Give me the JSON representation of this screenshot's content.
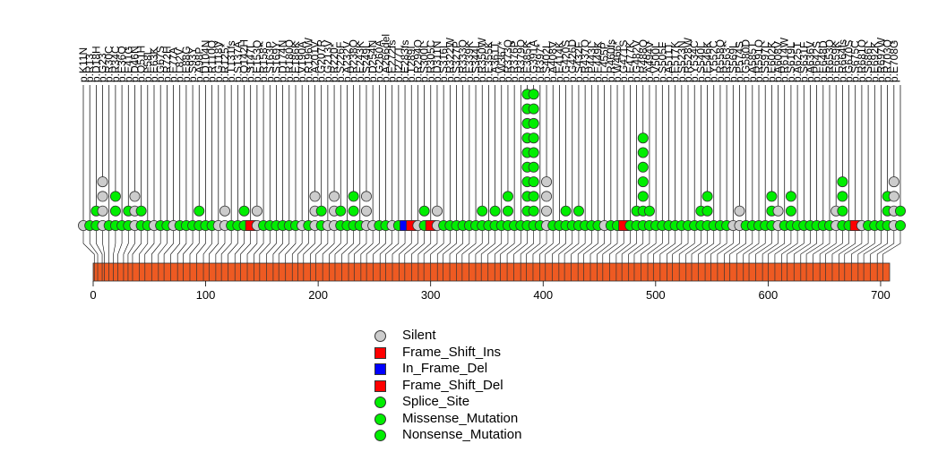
{
  "chart_data": {
    "type": "lollipop",
    "title": "",
    "protein_length": 708,
    "x_axis": {
      "range": [
        0,
        708
      ],
      "ticks": [
        0,
        100,
        200,
        300,
        400,
        500,
        600,
        700
      ]
    },
    "domain_color": "#ee5a22",
    "mutation_labels": [
      "p.K11N",
      "p.R13",
      "p.D18H",
      "p.G23",
      "p.R30C",
      "p.R34C",
      "p.E36Q",
      "p.E41G",
      "p.D46N",
      "p.Q51H",
      "p.F58L",
      "p.E63K",
      "p.G67S",
      "p.R72H",
      "p.E77A",
      "p.L82V",
      "p.E88G",
      "p.S93Y",
      "p.A98P",
      "p.D104N",
      "p.R110Q",
      "p.G118V",
      "p.R125*",
      "p.T131fs",
      "p.S137A",
      "p.Q142H",
      "p.S147L",
      "p.E153Q",
      "p.R158*",
      "p.S163P",
      "p.S169Y",
      "p.D174N",
      "p.R180Q",
      "p.E186K",
      "p.V190A",
      "p.R196W",
      "p.A201V",
      "p.G207R",
      "p.G213V",
      "p.R220*",
      "p.S226F",
      "p.A232V",
      "p.R238Q",
      "p.E243K",
      "p.S249L",
      "p.D254N",
      "p.G260A",
      "p.A266del",
      "p.E272fs",
      "p.I277T",
      "p.E283fs",
      "p.T289I",
      "p.R294Q",
      "p.S300L",
      "p.R305C",
      "p.D311N",
      "p.S316L",
      "p.R322W",
      "p.S327P",
      "p.R333Q",
      "p.E339K",
      "p.S344L",
      "p.R350W",
      "p.E355K",
      "p.A361T",
      "p.W367*",
      "p.R373Q",
      "p.R376P",
      "p.R379Q",
      "p.E385K",
      "p.G391A",
      "p.R397*",
      "p.S402L",
      "p.A408V",
      "p.E414K",
      "p.G420S",
      "p.G426D",
      "p.S432F",
      "p.R437Q",
      "p.P443L",
      "p.E449K",
      "p.L455P",
      "p.R460fs",
      "p.W466*",
      "p.G471S",
      "p.E477K",
      "p.G482V",
      "p.R488Q",
      "p.A494V",
      "p.V500L",
      "p.S505F",
      "p.A511T",
      "p.E517K",
      "p.S523N",
      "p.R528W",
      "p.Y534C",
      "p.S540L",
      "p.E546K",
      "p.Y552C",
      "p.R558Q",
      "p.R563*",
      "p.S569L",
      "p.P574S",
      "p.G580D",
      "p.A585T",
      "p.R591Q",
      "p.S597L",
      "p.E602K",
      "p.A608V",
      "p.R614W",
      "p.S619L",
      "p.A625T",
      "p.S631F",
      "p.A636V",
      "p.P642S",
      "p.E648D",
      "p.R653Q",
      "p.E659K",
      "p.R664fs",
      "p.G670S",
      "p.S675C",
      "p.R681Q",
      "p.S686L",
      "p.E692K",
      "p.R697W",
      "p.R703Q",
      "p.E708G"
    ],
    "mutations": [
      {
        "pos": 1,
        "type": "Silent",
        "count": 1
      },
      {
        "pos": 4,
        "type": "Missense_Mutation",
        "count": 1
      },
      {
        "pos": 8,
        "type": "Missense_Mutation",
        "count": 2
      },
      {
        "pos": 10,
        "type": "Silent",
        "count": 4
      },
      {
        "pos": 14,
        "type": "Missense_Mutation",
        "count": 1
      },
      {
        "pos": 18,
        "type": "Missense_Mutation",
        "count": 3
      },
      {
        "pos": 22,
        "type": "Missense_Mutation",
        "count": 1
      },
      {
        "pos": 27,
        "type": "Missense_Mutation",
        "count": 2
      },
      {
        "pos": 31,
        "type": "Silent",
        "count": 3
      },
      {
        "pos": 35,
        "type": "Missense_Mutation",
        "count": 2
      },
      {
        "pos": 41,
        "type": "Missense_Mutation",
        "count": 1
      },
      {
        "pos": 46,
        "type": "Silent",
        "count": 1
      },
      {
        "pos": 52,
        "type": "Missense_Mutation",
        "count": 1
      },
      {
        "pos": 58,
        "type": "Missense_Mutation",
        "count": 1
      },
      {
        "pos": 63,
        "type": "Silent",
        "count": 1
      },
      {
        "pos": 69,
        "type": "Missense_Mutation",
        "count": 1
      },
      {
        "pos": 75,
        "type": "Missense_Mutation",
        "count": 1
      },
      {
        "pos": 80,
        "type": "Missense_Mutation",
        "count": 1
      },
      {
        "pos": 86,
        "type": "Missense_Mutation",
        "count": 2
      },
      {
        "pos": 92,
        "type": "Missense_Mutation",
        "count": 1
      },
      {
        "pos": 98,
        "type": "Missense_Mutation",
        "count": 1
      },
      {
        "pos": 103,
        "type": "Silent",
        "count": 1
      },
      {
        "pos": 109,
        "type": "Silent",
        "count": 2
      },
      {
        "pos": 114,
        "type": "Missense_Mutation",
        "count": 1
      },
      {
        "pos": 120,
        "type": "Missense_Mutation",
        "count": 1
      },
      {
        "pos": 126,
        "type": "Missense_Mutation",
        "count": 2
      },
      {
        "pos": 131,
        "type": "Frame_Shift_Ins",
        "count": 1
      },
      {
        "pos": 137,
        "type": "Silent",
        "count": 2
      },
      {
        "pos": 143,
        "type": "Missense_Mutation",
        "count": 1
      },
      {
        "pos": 148,
        "type": "Missense_Mutation",
        "count": 1
      },
      {
        "pos": 154,
        "type": "Missense_Mutation",
        "count": 1
      },
      {
        "pos": 160,
        "type": "Missense_Mutation",
        "count": 1
      },
      {
        "pos": 165,
        "type": "Missense_Mutation",
        "count": 1
      },
      {
        "pos": 171,
        "type": "Missense_Mutation",
        "count": 1
      },
      {
        "pos": 177,
        "type": "Silent",
        "count": 1
      },
      {
        "pos": 182,
        "type": "Missense_Mutation",
        "count": 1
      },
      {
        "pos": 187,
        "type": "Silent",
        "count": 3
      },
      {
        "pos": 193,
        "type": "Missense_Mutation",
        "count": 2
      },
      {
        "pos": 198,
        "type": "Silent",
        "count": 1
      },
      {
        "pos": 204,
        "type": "Silent",
        "count": 3
      },
      {
        "pos": 210,
        "type": "Missense_Mutation",
        "count": 2
      },
      {
        "pos": 215,
        "type": "Missense_Mutation",
        "count": 1
      },
      {
        "pos": 221,
        "type": "Missense_Mutation",
        "count": 3
      },
      {
        "pos": 227,
        "type": "Missense_Mutation",
        "count": 1
      },
      {
        "pos": 232,
        "type": "Silent",
        "count": 3
      },
      {
        "pos": 238,
        "type": "Silent",
        "count": 1
      },
      {
        "pos": 243,
        "type": "Missense_Mutation",
        "count": 1
      },
      {
        "pos": 249,
        "type": "Missense_Mutation",
        "count": 1
      },
      {
        "pos": 255,
        "type": "Silent",
        "count": 1
      },
      {
        "pos": 260,
        "type": "Missense_Mutation",
        "count": 1
      },
      {
        "pos": 266,
        "type": "In_Frame_Del",
        "count": 1
      },
      {
        "pos": 272,
        "type": "Frame_Shift_Del",
        "count": 1
      },
      {
        "pos": 277,
        "type": "Silent",
        "count": 1
      },
      {
        "pos": 283,
        "type": "Missense_Mutation",
        "count": 2
      },
      {
        "pos": 289,
        "type": "Frame_Shift_Del",
        "count": 1
      },
      {
        "pos": 294,
        "type": "Silent",
        "count": 2
      },
      {
        "pos": 300,
        "type": "Missense_Mutation",
        "count": 1
      },
      {
        "pos": 306,
        "type": "Missense_Mutation",
        "count": 1
      },
      {
        "pos": 311,
        "type": "Missense_Mutation",
        "count": 1
      },
      {
        "pos": 317,
        "type": "Missense_Mutation",
        "count": 1
      },
      {
        "pos": 323,
        "type": "Missense_Mutation",
        "count": 1
      },
      {
        "pos": 328,
        "type": "Missense_Mutation",
        "count": 1
      },
      {
        "pos": 334,
        "type": "Missense_Mutation",
        "count": 2
      },
      {
        "pos": 340,
        "type": "Missense_Mutation",
        "count": 1
      },
      {
        "pos": 345,
        "type": "Missense_Mutation",
        "count": 2
      },
      {
        "pos": 351,
        "type": "Missense_Mutation",
        "count": 1
      },
      {
        "pos": 357,
        "type": "Missense_Mutation",
        "count": 3
      },
      {
        "pos": 362,
        "type": "Missense_Mutation",
        "count": 1
      },
      {
        "pos": 368,
        "type": "Missense_Mutation",
        "count": 1
      },
      {
        "pos": 374,
        "type": "Missense_Mutation",
        "count": 10
      },
      {
        "pos": 380,
        "type": "Missense_Mutation",
        "count": 10
      },
      {
        "pos": 385,
        "type": "Missense_Mutation",
        "count": 1
      },
      {
        "pos": 391,
        "type": "Silent",
        "count": 4
      },
      {
        "pos": 397,
        "type": "Missense_Mutation",
        "count": 1
      },
      {
        "pos": 402,
        "type": "Missense_Mutation",
        "count": 1
      },
      {
        "pos": 408,
        "type": "Missense_Mutation",
        "count": 2
      },
      {
        "pos": 414,
        "type": "Missense_Mutation",
        "count": 1
      },
      {
        "pos": 419,
        "type": "Missense_Mutation",
        "count": 2
      },
      {
        "pos": 425,
        "type": "Missense_Mutation",
        "count": 1
      },
      {
        "pos": 431,
        "type": "Missense_Mutation",
        "count": 1
      },
      {
        "pos": 436,
        "type": "Missense_Mutation",
        "count": 1
      },
      {
        "pos": 442,
        "type": "Silent",
        "count": 1
      },
      {
        "pos": 448,
        "type": "Missense_Mutation",
        "count": 1
      },
      {
        "pos": 453,
        "type": "Missense_Mutation",
        "count": 1
      },
      {
        "pos": 459,
        "type": "Frame_Shift_Del",
        "count": 1
      },
      {
        "pos": 465,
        "type": "Missense_Mutation",
        "count": 1
      },
      {
        "pos": 470,
        "type": "Missense_Mutation",
        "count": 2
      },
      {
        "pos": 476,
        "type": "Missense_Mutation",
        "count": 7
      },
      {
        "pos": 481,
        "type": "Missense_Mutation",
        "count": 2
      },
      {
        "pos": 487,
        "type": "Missense_Mutation",
        "count": 1
      },
      {
        "pos": 493,
        "type": "Missense_Mutation",
        "count": 1
      },
      {
        "pos": 498,
        "type": "Missense_Mutation",
        "count": 1
      },
      {
        "pos": 504,
        "type": "Missense_Mutation",
        "count": 1
      },
      {
        "pos": 510,
        "type": "Missense_Mutation",
        "count": 1
      },
      {
        "pos": 515,
        "type": "Missense_Mutation",
        "count": 1
      },
      {
        "pos": 521,
        "type": "Missense_Mutation",
        "count": 1
      },
      {
        "pos": 527,
        "type": "Missense_Mutation",
        "count": 2
      },
      {
        "pos": 532,
        "type": "Missense_Mutation",
        "count": 3
      },
      {
        "pos": 538,
        "type": "Missense_Mutation",
        "count": 1
      },
      {
        "pos": 544,
        "type": "Missense_Mutation",
        "count": 1
      },
      {
        "pos": 549,
        "type": "Missense_Mutation",
        "count": 1
      },
      {
        "pos": 555,
        "type": "Silent",
        "count": 1
      },
      {
        "pos": 561,
        "type": "Silent",
        "count": 2
      },
      {
        "pos": 566,
        "type": "Missense_Mutation",
        "count": 1
      },
      {
        "pos": 572,
        "type": "Missense_Mutation",
        "count": 1
      },
      {
        "pos": 578,
        "type": "Missense_Mutation",
        "count": 1
      },
      {
        "pos": 583,
        "type": "Missense_Mutation",
        "count": 1
      },
      {
        "pos": 589,
        "type": "Missense_Mutation",
        "count": 3
      },
      {
        "pos": 595,
        "type": "Silent",
        "count": 2
      },
      {
        "pos": 600,
        "type": "Missense_Mutation",
        "count": 1
      },
      {
        "pos": 606,
        "type": "Missense_Mutation",
        "count": 3
      },
      {
        "pos": 612,
        "type": "Missense_Mutation",
        "count": 1
      },
      {
        "pos": 617,
        "type": "Missense_Mutation",
        "count": 1
      },
      {
        "pos": 623,
        "type": "Missense_Mutation",
        "count": 1
      },
      {
        "pos": 629,
        "type": "Missense_Mutation",
        "count": 1
      },
      {
        "pos": 634,
        "type": "Missense_Mutation",
        "count": 1
      },
      {
        "pos": 640,
        "type": "Missense_Mutation",
        "count": 1
      },
      {
        "pos": 646,
        "type": "Silent",
        "count": 2
      },
      {
        "pos": 651,
        "type": "Missense_Mutation",
        "count": 4
      },
      {
        "pos": 657,
        "type": "Missense_Mutation",
        "count": 1
      },
      {
        "pos": 663,
        "type": "Frame_Shift_Del",
        "count": 1
      },
      {
        "pos": 668,
        "type": "Silent",
        "count": 1
      },
      {
        "pos": 674,
        "type": "Missense_Mutation",
        "count": 1
      },
      {
        "pos": 680,
        "type": "Missense_Mutation",
        "count": 1
      },
      {
        "pos": 685,
        "type": "Missense_Mutation",
        "count": 1
      },
      {
        "pos": 691,
        "type": "Missense_Mutation",
        "count": 3
      },
      {
        "pos": 697,
        "type": "Silent",
        "count": 4
      },
      {
        "pos": 702,
        "type": "Missense_Mutation",
        "count": 2
      }
    ],
    "legend": [
      {
        "label": "Silent",
        "shape": "circle",
        "color": "#cccccc"
      },
      {
        "label": "Frame_Shift_Ins",
        "shape": "square",
        "color": "#ff0000"
      },
      {
        "label": "In_Frame_Del",
        "shape": "square",
        "color": "#0000ff"
      },
      {
        "label": "Frame_Shift_Del",
        "shape": "square",
        "color": "#ff0000"
      },
      {
        "label": "Splice_Site",
        "shape": "circle",
        "color": "#00ee00"
      },
      {
        "label": "Missense_Mutation",
        "shape": "circle",
        "color": "#00ee00"
      },
      {
        "label": "Nonsense_Mutation",
        "shape": "circle",
        "color": "#00ee00"
      }
    ]
  }
}
